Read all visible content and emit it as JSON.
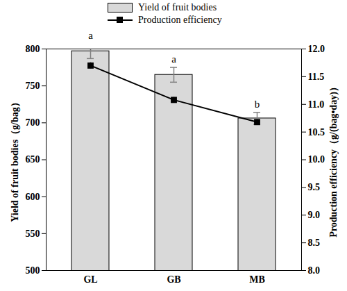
{
  "chart_data": {
    "type": "bar",
    "categories": [
      "GL",
      "GB",
      "MB"
    ],
    "series": [
      {
        "name": "Yield of fruit bodies",
        "type": "bar",
        "color": "#d9d9d9",
        "values": [
          797,
          765,
          706
        ],
        "errors": [
          10,
          10,
          8
        ]
      },
      {
        "name": "Production efficiency",
        "type": "line",
        "axis": "y2",
        "color": "#000000",
        "marker": "square",
        "values": [
          11.7,
          11.08,
          10.68
        ],
        "errors": [
          0.06,
          0.05,
          0.06
        ]
      }
    ],
    "ylabel": "Yield of fruit bodies（g/bag）",
    "y2label": "Production efficiency（g/(bag•day)）",
    "ylim": [
      500,
      800
    ],
    "yticks": [
      500,
      550,
      600,
      650,
      700,
      750,
      800
    ],
    "y2lim": [
      8,
      12
    ],
    "y2ticks": [
      {
        "value": 8,
        "label": "8.0"
      },
      {
        "value": 8.5,
        "label": "8.5"
      },
      {
        "value": 9,
        "label": "9.0"
      },
      {
        "value": 9.5,
        "label": "9.5"
      },
      {
        "value": 10,
        "label": "10.0"
      },
      {
        "value": 10.5,
        "label": "10.5"
      },
      {
        "value": 11,
        "label": "11.0"
      },
      {
        "value": 11.5,
        "label": "11.5"
      },
      {
        "value": 12,
        "label": "12.0"
      }
    ],
    "annotations": [
      {
        "category": "GL",
        "text": "a"
      },
      {
        "category": "GB",
        "text": "a"
      },
      {
        "category": "MB",
        "text": "b"
      }
    ],
    "legend": "top"
  }
}
